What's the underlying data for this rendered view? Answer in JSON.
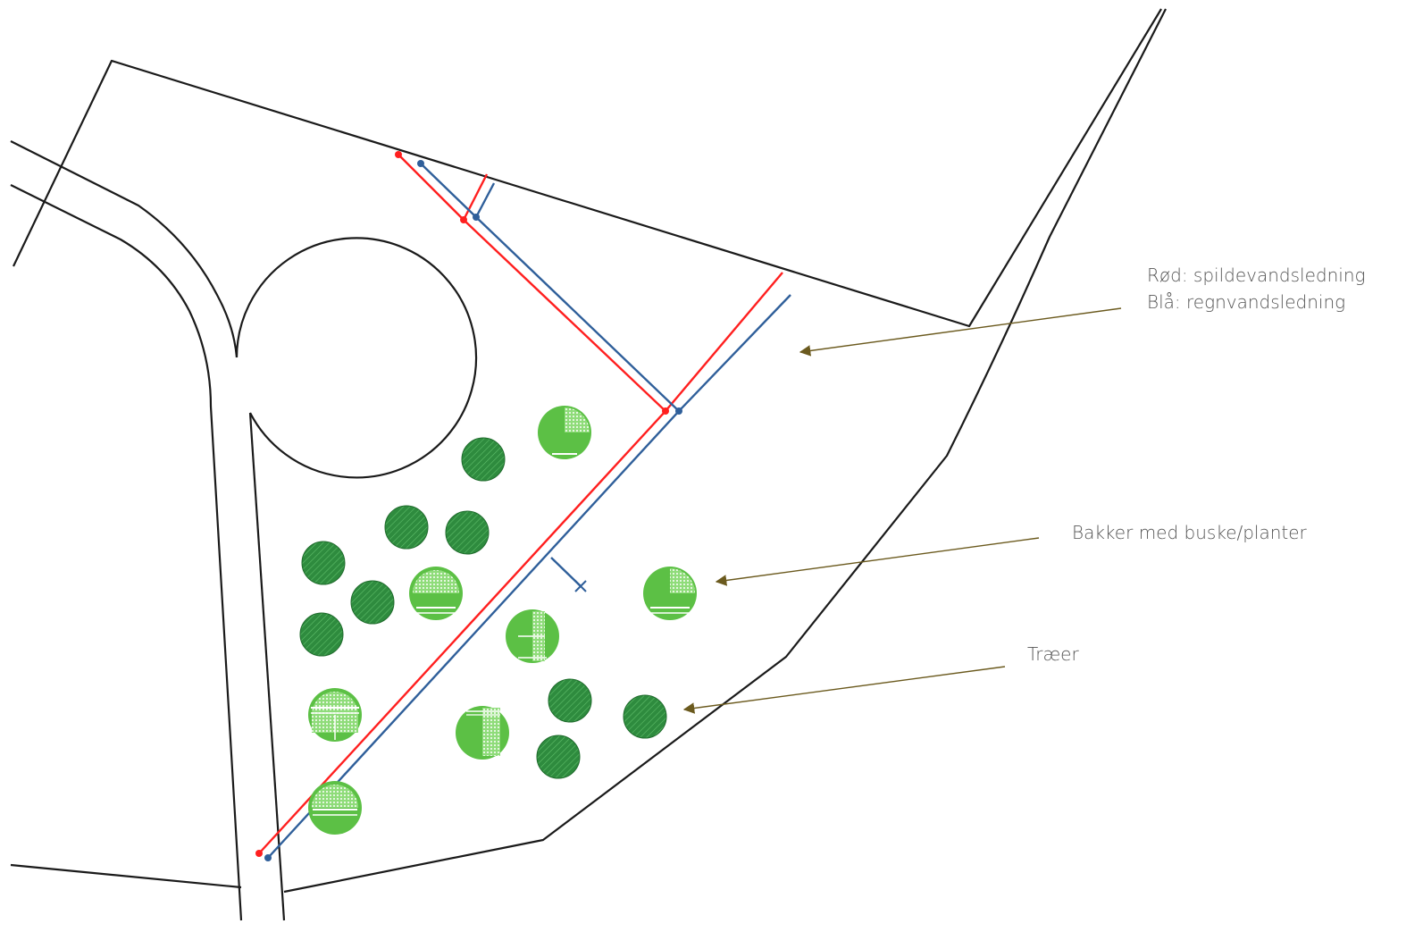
{
  "legend": {
    "red": "Rød: spildevandsledning",
    "blue": "Blå: regnvandsledning"
  },
  "annotations": {
    "shrubs": "Bakker med buske/planter",
    "trees": "Træer"
  },
  "colors": {
    "outline": "#1a1a1a",
    "wastewater": "#ff1f1f",
    "rainwater": "#2f5f9a",
    "tree": "#2e8b3e",
    "shrub": "#5cc045",
    "arrow": "#6b5a1e"
  }
}
